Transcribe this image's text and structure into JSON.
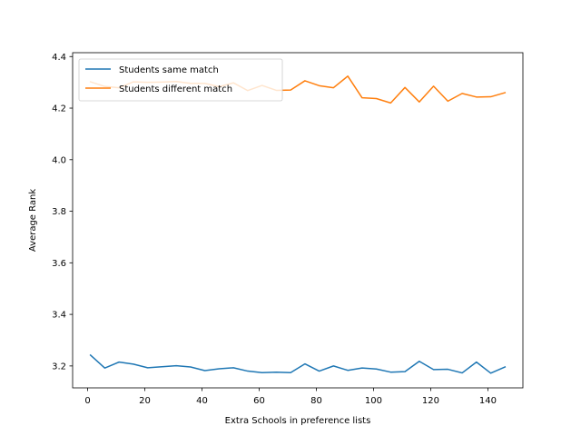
{
  "chart_data": {
    "type": "line",
    "xlabel": "Extra Schools in preference lists",
    "ylabel": "Average Rank",
    "xlim": [
      -5.25,
      152.25
    ],
    "ylim": [
      3.115,
      4.415
    ],
    "xticks": [
      0,
      20,
      40,
      60,
      80,
      100,
      120,
      140
    ],
    "yticks": [
      3.2,
      3.4,
      3.6,
      3.8,
      4.0,
      4.2,
      4.4
    ],
    "ytick_labels": [
      "3.2",
      "3.4",
      "3.6",
      "3.8",
      "4.0",
      "4.2",
      "4.4"
    ],
    "grid": false,
    "legend_position": "upper left",
    "x": [
      1,
      6,
      11,
      16,
      21,
      26,
      31,
      36,
      41,
      46,
      51,
      56,
      61,
      66,
      71,
      76,
      81,
      86,
      91,
      96,
      101,
      106,
      111,
      116,
      121,
      126,
      131,
      136,
      141,
      146
    ],
    "series": [
      {
        "name": "Students same match",
        "color": "#1f77b4",
        "values": [
          3.242,
          3.192,
          3.215,
          3.207,
          3.193,
          3.197,
          3.201,
          3.196,
          3.182,
          3.189,
          3.193,
          3.18,
          3.174,
          3.176,
          3.174,
          3.208,
          3.18,
          3.2,
          3.183,
          3.192,
          3.188,
          3.176,
          3.178,
          3.218,
          3.186,
          3.187,
          3.173,
          3.215,
          3.172,
          3.196
        ]
      },
      {
        "name": "Students different match",
        "color": "#ff7f0e",
        "values": [
          4.302,
          4.284,
          4.279,
          4.302,
          4.3,
          4.301,
          4.303,
          4.296,
          4.296,
          4.283,
          4.298,
          4.268,
          4.288,
          4.269,
          4.27,
          4.306,
          4.287,
          4.279,
          4.324,
          4.24,
          4.237,
          4.22,
          4.28,
          4.224,
          4.285,
          4.227,
          4.257,
          4.243,
          4.244,
          4.26
        ]
      }
    ]
  }
}
